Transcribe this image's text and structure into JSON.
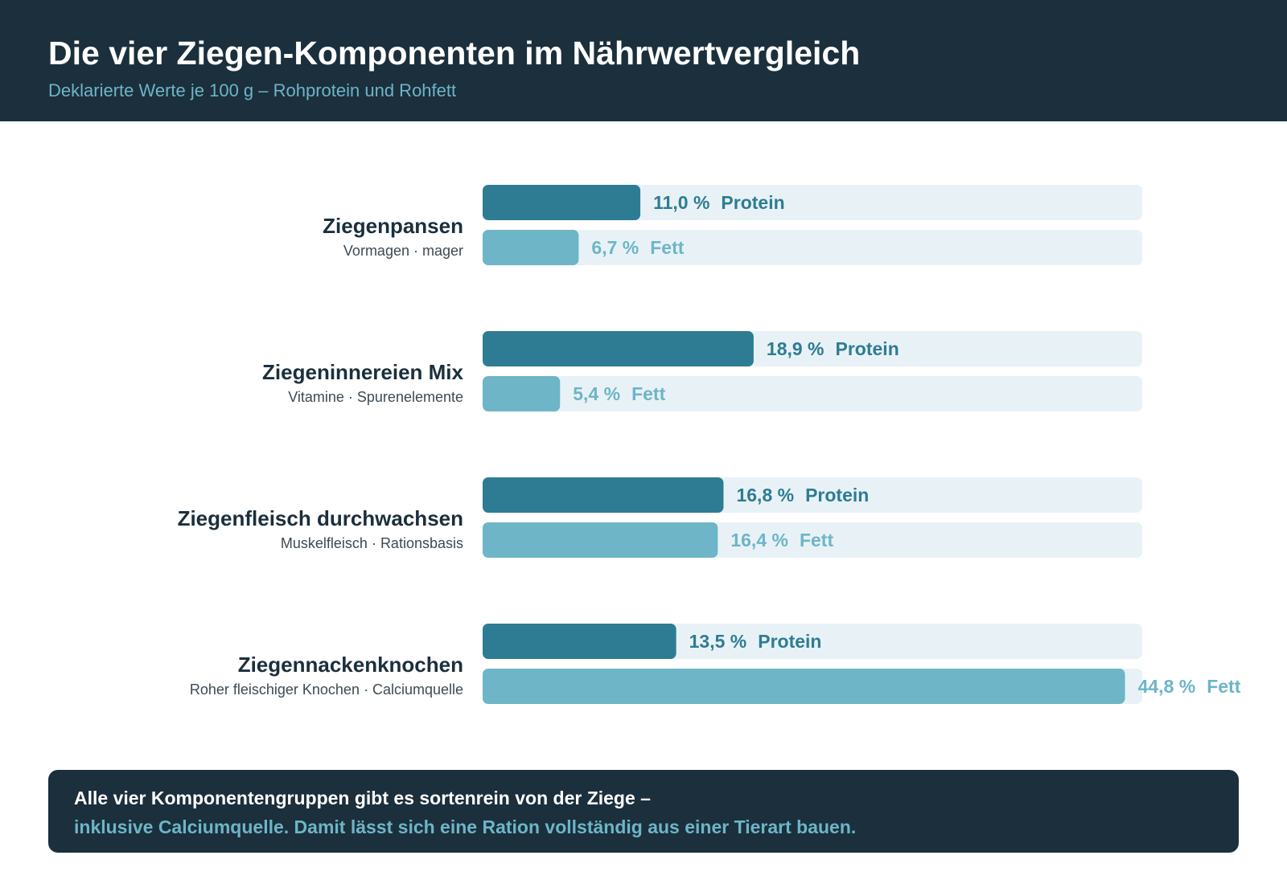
{
  "header": {
    "title": "Die vier Ziegen-Komponenten im Nährwertvergleich",
    "subtitle": "Deklarierte Werte je 100 g – Rohprotein und Rohfett"
  },
  "chart_data": {
    "type": "bar",
    "orientation": "horizontal",
    "xlim": [
      0,
      46
    ],
    "unit": "%",
    "categories": [
      {
        "name": "Ziegenpansen",
        "note": "Vormagen · mager"
      },
      {
        "name": "Ziegeninnereien Mix",
        "note": "Vitamine · Spurenelemente"
      },
      {
        "name": "Ziegenfleisch durchwachsen",
        "note": "Muskelfleisch · Rationsbasis"
      },
      {
        "name": "Ziegennackenknochen",
        "note": "Roher fleischiger Knochen · Calciumquelle"
      }
    ],
    "series": [
      {
        "name": "Protein",
        "color": "#2e7c93",
        "track_color": "#e8f2f6",
        "values": [
          11.0,
          18.9,
          16.8,
          13.5
        ],
        "labels": [
          "11,0 %",
          "18,9 %",
          "16,8 %",
          "13,5 %"
        ]
      },
      {
        "name": "Fett",
        "color": "#6db5c7",
        "track_color": "#e8f2f6",
        "values": [
          6.7,
          5.4,
          16.4,
          44.8
        ],
        "labels": [
          "6,7 %",
          "5,4 %",
          "16,4 %",
          "44,8 %"
        ]
      }
    ],
    "grid": false,
    "legend": "none"
  },
  "footer": {
    "line1": "Alle vier Komponentengruppen gibt es sortenrein von der Ziege –",
    "line2": "inklusive Calciumquelle. Damit lässt sich eine Ration vollständig aus einer Tierart bauen."
  },
  "colors": {
    "dark": "#1b2f3c",
    "accent": "#6db5c7",
    "protein": "#2e7c93",
    "fett": "#6db5c7",
    "track": "#e8f2f6"
  }
}
